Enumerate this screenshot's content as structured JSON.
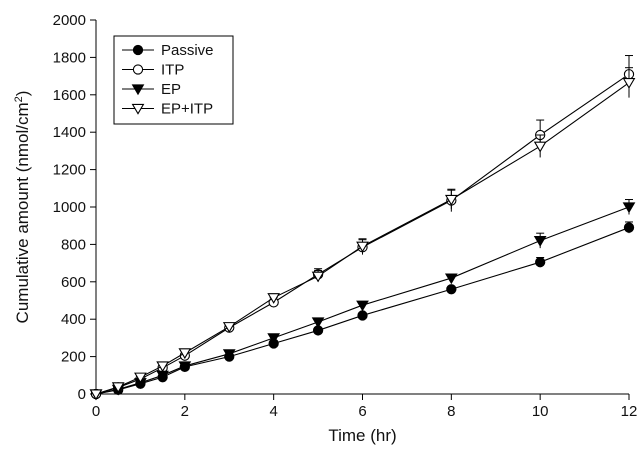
{
  "chart_data": {
    "type": "line",
    "xlabel": "Time (hr)",
    "ylabel_main": "Cumulative amount (nmol/cm",
    "ylabel_sup": "2",
    "ylabel_close": ")",
    "xlim": [
      0,
      12
    ],
    "ylim": [
      0,
      2000
    ],
    "xticks": [
      0,
      2,
      4,
      6,
      8,
      10,
      12
    ],
    "yticks": [
      0,
      200,
      400,
      600,
      800,
      1000,
      1200,
      1400,
      1600,
      1800,
      2000
    ],
    "legend_position": "top-left",
    "grid": false,
    "series": [
      {
        "name": "Passive",
        "marker": "circle-filled",
        "x": [
          0,
          0.5,
          1,
          1.5,
          2,
          3,
          4,
          5,
          6,
          8,
          10,
          12
        ],
        "y": [
          0,
          22,
          55,
          90,
          145,
          200,
          270,
          340,
          420,
          560,
          705,
          890
        ],
        "err": [
          0,
          5,
          8,
          10,
          10,
          12,
          15,
          15,
          15,
          15,
          25,
          30
        ]
      },
      {
        "name": "ITP",
        "marker": "circle-open",
        "x": [
          0,
          0.5,
          1,
          1.5,
          2,
          3,
          4,
          5,
          6,
          8,
          10,
          12
        ],
        "y": [
          0,
          35,
          80,
          140,
          205,
          355,
          490,
          640,
          785,
          1035,
          1385,
          1710
        ],
        "err": [
          0,
          6,
          8,
          10,
          12,
          15,
          25,
          30,
          40,
          60,
          80,
          100
        ]
      },
      {
        "name": "EP",
        "marker": "triangle-down-filled",
        "x": [
          0,
          0.5,
          1,
          1.5,
          2,
          3,
          4,
          5,
          6,
          8,
          10,
          12
        ],
        "y": [
          0,
          25,
          60,
          100,
          150,
          215,
          300,
          385,
          475,
          620,
          820,
          1000
        ],
        "err": [
          0,
          5,
          8,
          10,
          10,
          12,
          15,
          15,
          20,
          20,
          40,
          40
        ]
      },
      {
        "name": "EP+ITP",
        "marker": "triangle-down-open",
        "x": [
          0,
          0.5,
          1,
          1.5,
          2,
          3,
          4,
          5,
          6,
          8,
          10,
          12
        ],
        "y": [
          0,
          38,
          90,
          150,
          220,
          360,
          515,
          630,
          790,
          1040,
          1325,
          1665
        ],
        "err": [
          0,
          6,
          8,
          10,
          12,
          15,
          20,
          30,
          40,
          50,
          60,
          80
        ]
      }
    ]
  }
}
